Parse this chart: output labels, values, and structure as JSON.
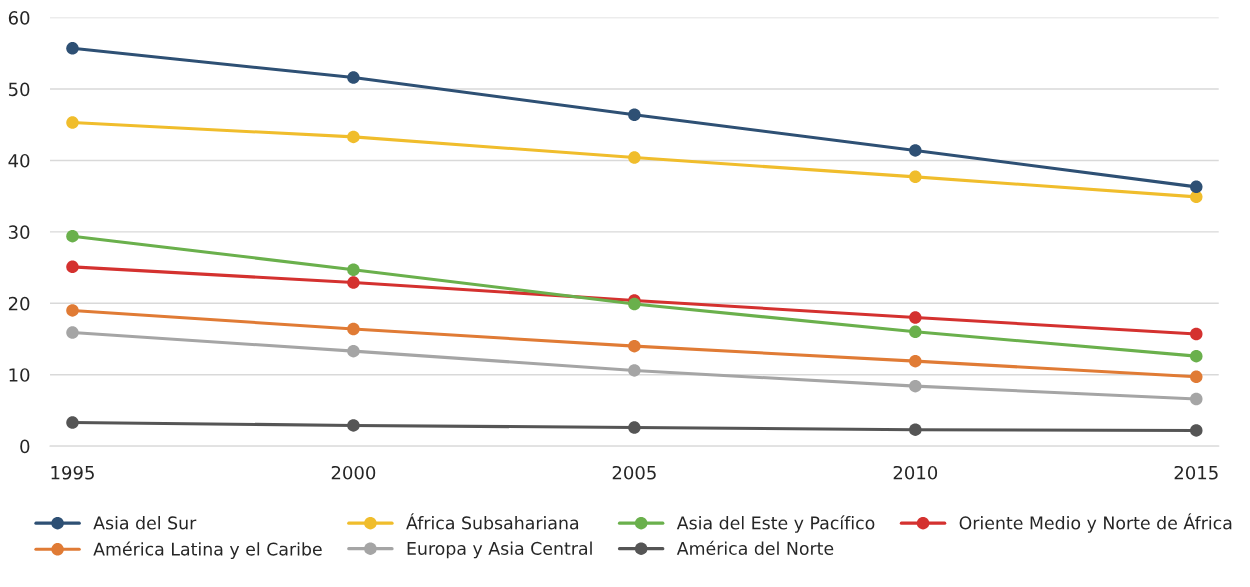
{
  "chart_data": {
    "type": "line",
    "categories": [
      "1995",
      "2000",
      "2005",
      "2010",
      "2015"
    ],
    "series": [
      {
        "name": "Asia del Sur",
        "color": "#2e5074",
        "values": [
          55.7,
          51.6,
          46.4,
          41.4,
          36.3
        ]
      },
      {
        "name": "África Subsahariana",
        "color": "#f0bd2c",
        "values": [
          45.3,
          43.3,
          40.4,
          37.7,
          34.9
        ]
      },
      {
        "name": "Asia del Este y Pacífico",
        "color": "#6ab04c",
        "values": [
          29.4,
          24.7,
          19.9,
          16.0,
          12.6
        ]
      },
      {
        "name": "Oriente Medio y Norte de África",
        "color": "#d4312f",
        "values": [
          25.1,
          22.9,
          20.4,
          18.0,
          15.7
        ]
      },
      {
        "name": "América Latina y el Caribe",
        "color": "#e07b35",
        "values": [
          19.0,
          16.4,
          14.0,
          11.9,
          9.7
        ]
      },
      {
        "name": "Europa y Asia Central",
        "color": "#a5a5a5",
        "values": [
          15.9,
          13.3,
          10.6,
          8.4,
          6.6
        ]
      },
      {
        "name": "América del Norte",
        "color": "#555555",
        "values": [
          3.3,
          2.9,
          2.6,
          2.3,
          2.2
        ]
      }
    ],
    "ylim": [
      0,
      60
    ],
    "yticks": [
      0,
      10,
      20,
      30,
      40,
      50,
      60
    ],
    "grid": "y",
    "legend": "bottom",
    "marker": "circle",
    "line_style": "solid"
  }
}
